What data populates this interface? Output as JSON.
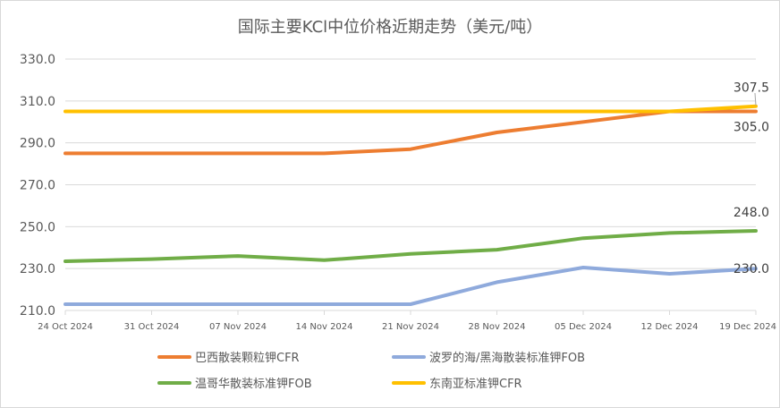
{
  "title": "国际主要KCl中位价格近期走势（美元/吨）",
  "chart_data": {
    "type": "line",
    "title": "国际主要KCl中位价格近期走势（美元/吨）",
    "x": [
      "24 Oct 2024",
      "31 Oct 2024",
      "07 Nov 2024",
      "14 Nov 2024",
      "21 Nov 2024",
      "28 Nov 2024",
      "05 Dec 2024",
      "12 Dec 2024",
      "19 Dec 2024"
    ],
    "ylim": [
      210,
      330
    ],
    "yticks": [
      "210.0",
      "230.0",
      "250.0",
      "270.0",
      "290.0",
      "310.0",
      "330.0"
    ],
    "grid": true,
    "legend_position": "bottom",
    "series": [
      {
        "name": "巴西散装颗粒钾CFR",
        "color": "#ED7D31",
        "values": [
          285,
          285,
          285,
          285,
          287,
          295,
          300,
          305,
          305
        ],
        "end_label": "305.0"
      },
      {
        "name": "波罗的海/黑海散装标准钾FOB",
        "color": "#8FAADC",
        "values": [
          213,
          213,
          213,
          213,
          213,
          223.5,
          230.5,
          227.5,
          230
        ],
        "end_label": "230.0"
      },
      {
        "name": "温哥华散装标准钾FOB",
        "color": "#70AD47",
        "values": [
          233.5,
          234.5,
          236,
          234,
          237,
          239,
          244.5,
          247,
          248
        ],
        "end_label": "248.0"
      },
      {
        "name": "东南亚标准钾CFR",
        "color": "#FFC000",
        "values": [
          305,
          305,
          305,
          305,
          305,
          305,
          305,
          305,
          307.5
        ],
        "end_label": "307.5"
      }
    ]
  }
}
